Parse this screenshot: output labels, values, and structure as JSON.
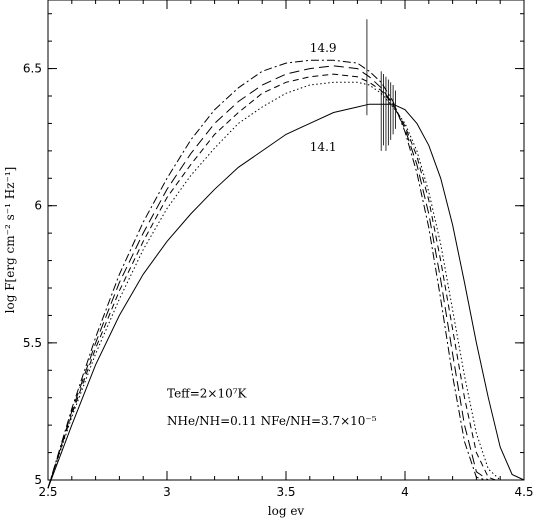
{
  "chart_data": {
    "type": "line",
    "xlabel": "log ev",
    "ylabel": "log F[erg cm⁻² s⁻¹ Hz⁻¹]",
    "xlim": [
      2.5,
      4.5
    ],
    "ylim": [
      5,
      6.75
    ],
    "x_ticks": [
      "2.5",
      "3",
      "3.5",
      "4",
      "4.5"
    ],
    "y_ticks": [
      "5",
      "5.5",
      "6",
      "6.5"
    ],
    "grid": false,
    "curve_labels": [
      {
        "text": "14.9",
        "x": 3.6,
        "y": 6.56
      },
      {
        "text": "14.1",
        "x": 3.6,
        "y": 6.2
      }
    ],
    "annotations": [
      {
        "text": "Teff=2×10⁷K",
        "x": 3.0,
        "y": 5.3
      },
      {
        "text": "NHe/NH=0.11  NFe/NH=3.7×10⁻⁵",
        "x": 3.0,
        "y": 5.2
      }
    ],
    "series": [
      {
        "style": "solid",
        "x": [
          2.5,
          2.6,
          2.7,
          2.8,
          2.9,
          3.0,
          3.1,
          3.2,
          3.3,
          3.4,
          3.5,
          3.6,
          3.7,
          3.8,
          3.85,
          3.9,
          3.95,
          4.0,
          4.05,
          4.1,
          4.15,
          4.2,
          4.25,
          4.3,
          4.35,
          4.4,
          4.45,
          4.5
        ],
        "y": [
          4.97,
          5.2,
          5.42,
          5.6,
          5.75,
          5.87,
          5.97,
          6.06,
          6.14,
          6.2,
          6.26,
          6.3,
          6.34,
          6.36,
          6.37,
          6.37,
          6.37,
          6.35,
          6.3,
          6.22,
          6.1,
          5.93,
          5.72,
          5.5,
          5.3,
          5.12,
          5.02,
          5.0
        ]
      },
      {
        "style": "dotted",
        "x": [
          2.5,
          2.6,
          2.7,
          2.8,
          2.9,
          3.0,
          3.1,
          3.2,
          3.3,
          3.4,
          3.5,
          3.6,
          3.7,
          3.8,
          3.85,
          3.9,
          3.95,
          4.0,
          4.05,
          4.1,
          4.15,
          4.2,
          4.25,
          4.3,
          4.35,
          4.4
        ],
        "y": [
          4.97,
          5.23,
          5.46,
          5.66,
          5.84,
          5.99,
          6.11,
          6.21,
          6.3,
          6.36,
          6.41,
          6.44,
          6.45,
          6.45,
          6.44,
          6.41,
          6.36,
          6.3,
          6.2,
          6.05,
          5.86,
          5.62,
          5.38,
          5.17,
          5.04,
          5.0
        ]
      },
      {
        "style": "dashed",
        "x": [
          2.5,
          2.6,
          2.7,
          2.8,
          2.9,
          3.0,
          3.1,
          3.2,
          3.3,
          3.4,
          3.5,
          3.6,
          3.7,
          3.8,
          3.85,
          3.9,
          3.95,
          4.0,
          4.05,
          4.1,
          4.15,
          4.2,
          4.25,
          4.3,
          4.35,
          4.38
        ],
        "y": [
          4.97,
          5.24,
          5.48,
          5.69,
          5.87,
          6.03,
          6.15,
          6.26,
          6.34,
          6.41,
          6.45,
          6.47,
          6.48,
          6.47,
          6.45,
          6.42,
          6.37,
          6.29,
          6.18,
          6.02,
          5.8,
          5.55,
          5.3,
          5.1,
          5.01,
          5.0
        ]
      },
      {
        "style": "long-dash",
        "x": [
          2.5,
          2.6,
          2.7,
          2.8,
          2.9,
          3.0,
          3.1,
          3.2,
          3.3,
          3.4,
          3.5,
          3.6,
          3.7,
          3.8,
          3.85,
          3.9,
          3.95,
          4.0,
          4.05,
          4.1,
          4.15,
          4.2,
          4.25,
          4.3,
          4.35
        ],
        "y": [
          4.97,
          5.25,
          5.5,
          5.72,
          5.9,
          6.06,
          6.19,
          6.3,
          6.38,
          6.44,
          6.48,
          6.5,
          6.51,
          6.5,
          6.47,
          6.43,
          6.37,
          6.28,
          6.15,
          5.97,
          5.73,
          5.46,
          5.2,
          5.03,
          5.0
        ]
      },
      {
        "style": "dash-dot",
        "x": [
          2.5,
          2.6,
          2.7,
          2.8,
          2.9,
          3.0,
          3.1,
          3.2,
          3.3,
          3.4,
          3.5,
          3.6,
          3.7,
          3.8,
          3.85,
          3.9,
          3.95,
          4.0,
          4.05,
          4.1,
          4.15,
          4.2,
          4.25,
          4.3,
          4.34
        ],
        "y": [
          4.97,
          5.26,
          5.52,
          5.75,
          5.94,
          6.1,
          6.24,
          6.35,
          6.43,
          6.49,
          6.52,
          6.53,
          6.53,
          6.52,
          6.49,
          6.45,
          6.38,
          6.27,
          6.12,
          5.92,
          5.66,
          5.38,
          5.14,
          5.01,
          5.0
        ]
      }
    ],
    "absorption_lines": [
      {
        "x": 3.84,
        "top": 6.68,
        "bottom": 6.33
      },
      {
        "x": 3.9,
        "top": 6.49,
        "bottom": 6.2
      },
      {
        "x": 3.91,
        "top": 6.48,
        "bottom": 6.22
      },
      {
        "x": 3.92,
        "top": 6.47,
        "bottom": 6.2
      },
      {
        "x": 3.93,
        "top": 6.46,
        "bottom": 6.22
      },
      {
        "x": 3.94,
        "top": 6.45,
        "bottom": 6.24
      },
      {
        "x": 3.95,
        "top": 6.44,
        "bottom": 6.26
      },
      {
        "x": 3.96,
        "top": 6.42,
        "bottom": 6.28
      }
    ]
  }
}
